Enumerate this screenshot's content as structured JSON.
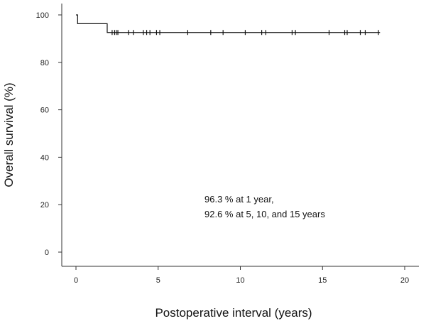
{
  "chart_data": {
    "type": "line",
    "title": "",
    "xlabel": "Postoperative interval (years)",
    "ylabel": "Overall survival (%)",
    "xlim": [
      0,
      20
    ],
    "ylim": [
      0,
      100
    ],
    "x_ticks": [
      0,
      5,
      10,
      15,
      20
    ],
    "y_ticks": [
      0,
      20,
      40,
      60,
      80,
      100
    ],
    "grid": false,
    "legend": "none",
    "line_color": "#111111",
    "series": [
      {
        "values": [
          {
            "x": 0.0,
            "y": 100
          },
          {
            "x": 0.1,
            "y": 96.3
          },
          {
            "x": 1.9,
            "y": 92.6
          },
          {
            "x": 18.5,
            "y": 92.6
          }
        ]
      }
    ],
    "censored": [
      {
        "x": 2.2,
        "y": 92.6
      },
      {
        "x": 2.35,
        "y": 92.6
      },
      {
        "x": 2.45,
        "y": 92.6
      },
      {
        "x": 2.55,
        "y": 92.6
      },
      {
        "x": 3.2,
        "y": 92.6
      },
      {
        "x": 3.5,
        "y": 92.6
      },
      {
        "x": 4.1,
        "y": 92.6
      },
      {
        "x": 4.3,
        "y": 92.6
      },
      {
        "x": 4.5,
        "y": 92.6
      },
      {
        "x": 4.9,
        "y": 92.6
      },
      {
        "x": 5.1,
        "y": 92.6
      },
      {
        "x": 6.8,
        "y": 92.6
      },
      {
        "x": 8.2,
        "y": 92.6
      },
      {
        "x": 8.95,
        "y": 92.6
      },
      {
        "x": 10.3,
        "y": 92.6
      },
      {
        "x": 11.3,
        "y": 92.6
      },
      {
        "x": 11.55,
        "y": 92.6
      },
      {
        "x": 13.15,
        "y": 92.6
      },
      {
        "x": 13.35,
        "y": 92.6
      },
      {
        "x": 15.4,
        "y": 92.6
      },
      {
        "x": 16.35,
        "y": 92.6
      },
      {
        "x": 16.5,
        "y": 92.6
      },
      {
        "x": 17.3,
        "y": 92.6
      },
      {
        "x": 17.6,
        "y": 92.6
      },
      {
        "x": 18.4,
        "y": 92.6
      }
    ],
    "annotations": [
      "96.3 % at 1 year,",
      "92.6 % at 5, 10, and 15 years"
    ]
  }
}
